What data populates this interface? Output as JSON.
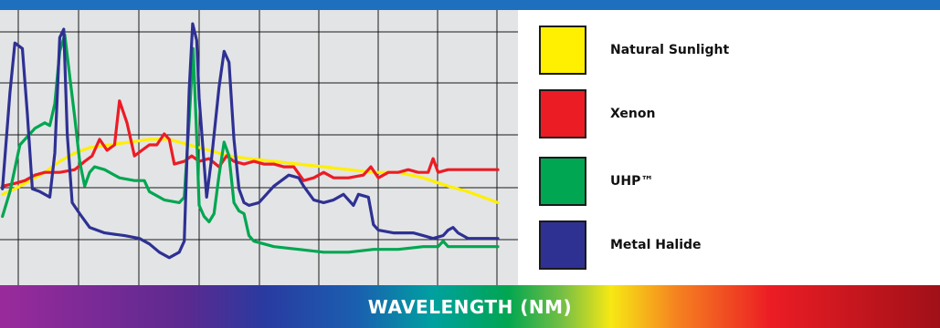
{
  "chart_data": {
    "type": "line",
    "xlabel": "WAVELENGTH (NM)",
    "ylabel": "",
    "xlim": [
      0,
      100
    ],
    "ylim": [
      0,
      100
    ],
    "grid": true,
    "legend_position": "right",
    "series": [
      {
        "name": "Natural Sunlight",
        "color": "#ffef00",
        "points": [
          [
            0.5,
            33
          ],
          [
            3,
            35
          ],
          [
            6,
            38
          ],
          [
            9,
            41
          ],
          [
            12,
            45
          ],
          [
            15,
            48
          ],
          [
            18,
            50
          ],
          [
            22,
            51
          ],
          [
            26,
            52
          ],
          [
            30,
            53
          ],
          [
            34,
            53
          ],
          [
            38,
            51
          ],
          [
            42,
            49
          ],
          [
            46,
            47
          ],
          [
            50,
            46
          ],
          [
            55,
            45
          ],
          [
            60,
            44
          ],
          [
            65,
            43
          ],
          [
            70,
            42
          ],
          [
            75,
            41
          ],
          [
            80,
            41
          ],
          [
            85,
            39
          ],
          [
            90,
            36
          ],
          [
            94,
            34
          ],
          [
            97,
            32
          ],
          [
            100,
            30
          ]
        ]
      },
      {
        "name": "Xenon",
        "color": "#ec1c24",
        "points": [
          [
            0.5,
            36
          ],
          [
            3,
            37
          ],
          [
            5,
            38
          ],
          [
            7,
            40
          ],
          [
            9,
            41
          ],
          [
            12,
            41
          ],
          [
            15,
            42
          ],
          [
            17,
            45
          ],
          [
            18.5,
            47
          ],
          [
            20,
            53
          ],
          [
            21.5,
            49
          ],
          [
            23,
            51
          ],
          [
            24,
            67
          ],
          [
            25.5,
            59
          ],
          [
            27,
            47
          ],
          [
            28.5,
            49
          ],
          [
            30,
            51
          ],
          [
            31.5,
            51
          ],
          [
            33,
            55
          ],
          [
            34,
            53
          ],
          [
            35,
            44
          ],
          [
            37,
            45
          ],
          [
            38.5,
            47
          ],
          [
            40,
            45
          ],
          [
            42,
            46
          ],
          [
            44,
            43
          ],
          [
            45.5,
            47
          ],
          [
            47,
            45
          ],
          [
            49,
            44
          ],
          [
            51,
            45
          ],
          [
            53,
            44
          ],
          [
            55,
            44
          ],
          [
            57,
            43
          ],
          [
            59,
            43
          ],
          [
            61,
            38
          ],
          [
            63,
            39
          ],
          [
            65,
            41
          ],
          [
            67,
            39
          ],
          [
            70,
            39
          ],
          [
            73,
            40
          ],
          [
            74.5,
            43
          ],
          [
            76,
            39
          ],
          [
            78,
            41
          ],
          [
            80,
            41
          ],
          [
            82,
            42
          ],
          [
            84,
            41
          ],
          [
            86,
            41
          ],
          [
            87,
            46
          ],
          [
            88,
            41
          ],
          [
            90,
            42
          ],
          [
            95,
            42
          ],
          [
            100,
            42
          ]
        ]
      },
      {
        "name": "UHP™",
        "color": "#00a651",
        "points": [
          [
            0.5,
            25
          ],
          [
            2,
            34
          ],
          [
            4,
            51
          ],
          [
            7,
            57
          ],
          [
            9,
            59
          ],
          [
            10,
            58
          ],
          [
            11,
            66
          ],
          [
            12,
            85
          ],
          [
            13,
            91
          ],
          [
            14,
            76
          ],
          [
            15,
            61
          ],
          [
            16,
            45
          ],
          [
            17,
            36
          ],
          [
            18,
            41
          ],
          [
            19,
            43
          ],
          [
            21,
            42
          ],
          [
            24,
            39
          ],
          [
            27,
            38
          ],
          [
            29,
            38
          ],
          [
            30,
            34
          ],
          [
            33,
            31
          ],
          [
            36,
            30
          ],
          [
            37,
            32
          ],
          [
            38,
            60
          ],
          [
            38.8,
            86
          ],
          [
            39.5,
            54
          ],
          [
            40,
            29
          ],
          [
            41,
            25
          ],
          [
            42,
            23
          ],
          [
            43,
            26
          ],
          [
            44,
            40
          ],
          [
            45,
            52
          ],
          [
            46,
            47
          ],
          [
            47,
            30
          ],
          [
            48,
            27
          ],
          [
            49,
            26
          ],
          [
            50,
            18
          ],
          [
            51,
            16
          ],
          [
            55,
            14
          ],
          [
            60,
            13
          ],
          [
            65,
            12
          ],
          [
            70,
            12
          ],
          [
            75,
            13
          ],
          [
            80,
            13
          ],
          [
            85,
            14
          ],
          [
            88,
            14
          ],
          [
            89,
            16
          ],
          [
            90,
            14
          ],
          [
            92,
            14
          ],
          [
            95,
            14
          ],
          [
            100,
            14
          ]
        ]
      },
      {
        "name": "Metal Halide",
        "color": "#2e3192",
        "points": [
          [
            0.5,
            35
          ],
          [
            2,
            70
          ],
          [
            3,
            88
          ],
          [
            4.5,
            86
          ],
          [
            5.5,
            62
          ],
          [
            6.5,
            35
          ],
          [
            8,
            34
          ],
          [
            10,
            32
          ],
          [
            11,
            48
          ],
          [
            12,
            90
          ],
          [
            12.8,
            93
          ],
          [
            13.5,
            55
          ],
          [
            14.5,
            30
          ],
          [
            16,
            26
          ],
          [
            18,
            21
          ],
          [
            21,
            19
          ],
          [
            25,
            18
          ],
          [
            28,
            17
          ],
          [
            30,
            15
          ],
          [
            32,
            12
          ],
          [
            34,
            10
          ],
          [
            36,
            12
          ],
          [
            37,
            16
          ],
          [
            38,
            71
          ],
          [
            38.7,
            95
          ],
          [
            39.5,
            89
          ],
          [
            40,
            68
          ],
          [
            41.5,
            32
          ],
          [
            42.5,
            46
          ],
          [
            44,
            72
          ],
          [
            45,
            85
          ],
          [
            46,
            81
          ],
          [
            47,
            53
          ],
          [
            48,
            35
          ],
          [
            49,
            30
          ],
          [
            50,
            29
          ],
          [
            52,
            30
          ],
          [
            55,
            36
          ],
          [
            58,
            40
          ],
          [
            60,
            39
          ],
          [
            61,
            36
          ],
          [
            63,
            31
          ],
          [
            65,
            30
          ],
          [
            67,
            31
          ],
          [
            69,
            33
          ],
          [
            70,
            31
          ],
          [
            71,
            29
          ],
          [
            72,
            33
          ],
          [
            74,
            32
          ],
          [
            75,
            22
          ],
          [
            76,
            20
          ],
          [
            79,
            19
          ],
          [
            83,
            19
          ],
          [
            85,
            18
          ],
          [
            87,
            17
          ],
          [
            89,
            18
          ],
          [
            90,
            20
          ],
          [
            91,
            21
          ],
          [
            92,
            19
          ],
          [
            94,
            17
          ],
          [
            96,
            17
          ],
          [
            98,
            17
          ],
          [
            100,
            17
          ]
        ]
      }
    ]
  }
}
